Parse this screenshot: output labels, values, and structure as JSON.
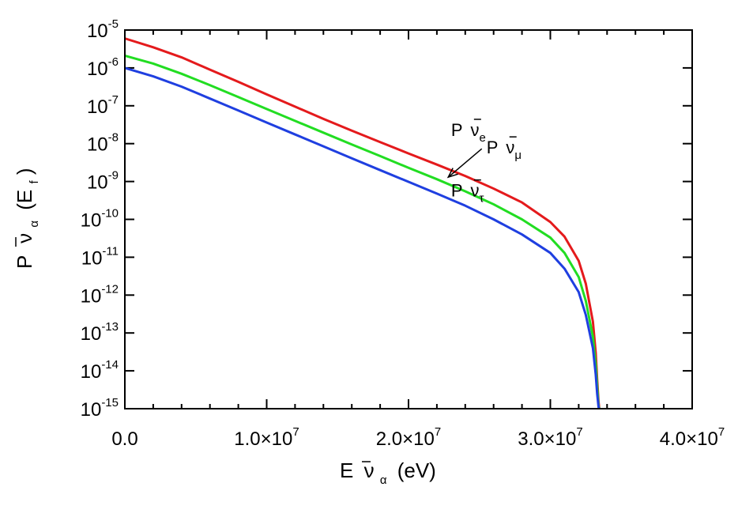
{
  "chart_data": {
    "type": "line",
    "xscale": "linear",
    "yscale": "log",
    "xlim": [
      0,
      40000000
    ],
    "ylim": [
      1e-15,
      1e-05
    ],
    "grid": false,
    "legend": "none",
    "x_ticks": [
      {
        "value": 0,
        "mantissa": "0.0",
        "times": "",
        "base": "",
        "exp": ""
      },
      {
        "value": 10000000,
        "mantissa": "1.0",
        "times": "×",
        "base": "10",
        "exp": "7"
      },
      {
        "value": 20000000,
        "mantissa": "2.0",
        "times": "×",
        "base": "10",
        "exp": "7"
      },
      {
        "value": 30000000,
        "mantissa": "3.0",
        "times": "×",
        "base": "10",
        "exp": "7"
      },
      {
        "value": 40000000,
        "mantissa": "4.0",
        "times": "×",
        "base": "10",
        "exp": "7"
      }
    ],
    "y_ticks": [
      {
        "value": 1e-05,
        "base": "10",
        "exp": "-5"
      },
      {
        "value": 1e-06,
        "base": "10",
        "exp": "-6"
      },
      {
        "value": 1e-07,
        "base": "10",
        "exp": "-7"
      },
      {
        "value": 1e-08,
        "base": "10",
        "exp": "-8"
      },
      {
        "value": 1e-09,
        "base": "10",
        "exp": "-9"
      },
      {
        "value": 1e-10,
        "base": "10",
        "exp": "-10"
      },
      {
        "value": 1e-11,
        "base": "10",
        "exp": "-11"
      },
      {
        "value": 1e-12,
        "base": "10",
        "exp": "-12"
      },
      {
        "value": 1e-13,
        "base": "10",
        "exp": "-13"
      },
      {
        "value": 1e-14,
        "base": "10",
        "exp": "-14"
      },
      {
        "value": 1e-15,
        "base": "10",
        "exp": "-15"
      }
    ],
    "xlabel": {
      "main": "E",
      "overbar": "ν",
      "sub": "α",
      "unit": "(eV)"
    },
    "ylabel": {
      "main": "P",
      "overbar": "ν",
      "sub": "α",
      "arg": "(E",
      "arg_sub": "f",
      "close": ")"
    },
    "series": [
      {
        "name_main": "P",
        "name_nu": "ν",
        "name_sub": "e",
        "color": "#e41a1c",
        "x": [
          0,
          2000000,
          4000000,
          6000000,
          8000000,
          10000000,
          12000000,
          14000000,
          16000000,
          18000000,
          20000000,
          22000000,
          24000000,
          26000000,
          28000000,
          30000000,
          31000000,
          32000000,
          32500000,
          33000000,
          33200000,
          33300000,
          33400000,
          33450000
        ],
        "y": [
          6e-06,
          3.5e-06,
          1.9e-06,
          9e-07,
          4.3e-07,
          2e-07,
          9.5e-08,
          4.5e-08,
          2.2e-08,
          1.1e-08,
          5.5e-09,
          2.8e-09,
          1.4e-09,
          6.5e-10,
          2.8e-10,
          8.5e-11,
          3.5e-11,
          8e-12,
          2e-12,
          2e-13,
          3e-14,
          6e-15,
          1.5e-15,
          1e-15
        ]
      },
      {
        "name_main": "P",
        "name_nu": "ν",
        "name_sub": "μ",
        "color": "#22dd22",
        "x": [
          0,
          2000000,
          4000000,
          6000000,
          8000000,
          10000000,
          12000000,
          14000000,
          16000000,
          18000000,
          20000000,
          22000000,
          24000000,
          26000000,
          28000000,
          30000000,
          31000000,
          32000000,
          32500000,
          33000000,
          33200000,
          33300000,
          33400000,
          33450000
        ],
        "y": [
          2.1e-06,
          1.3e-06,
          7e-07,
          3.5e-07,
          1.7e-07,
          8.2e-08,
          4e-08,
          1.95e-08,
          9.5e-09,
          4.7e-09,
          2.3e-09,
          1.15e-09,
          5.5e-10,
          2.5e-10,
          1e-10,
          3.3e-11,
          1.3e-11,
          3e-12,
          7e-13,
          8e-14,
          1.5e-14,
          4e-15,
          1.2e-15,
          1e-15
        ]
      },
      {
        "name_main": "P",
        "name_nu": "ν",
        "name_sub": "τ",
        "color": "#1f3fe0",
        "x": [
          0,
          2000000,
          4000000,
          6000000,
          8000000,
          10000000,
          12000000,
          14000000,
          16000000,
          18000000,
          20000000,
          22000000,
          24000000,
          26000000,
          28000000,
          30000000,
          31000000,
          32000000,
          32500000,
          33000000,
          33200000,
          33300000,
          33400000,
          33450000
        ],
        "y": [
          1e-06,
          6e-07,
          3.2e-07,
          1.55e-07,
          7.5e-08,
          3.6e-08,
          1.75e-08,
          8.5e-09,
          4.1e-09,
          2e-09,
          9.8e-10,
          4.8e-10,
          2.3e-10,
          1e-10,
          4e-11,
          1.3e-11,
          5e-12,
          1.2e-12,
          3e-13,
          4e-14,
          8e-15,
          2.5e-15,
          1.1e-15,
          1e-15
        ]
      }
    ],
    "annotations": [
      {
        "series": 0,
        "label_x": 23000000,
        "label_y": 1.6e-08,
        "arrow": false
      },
      {
        "series": 1,
        "label_x": 25500000,
        "label_y": 5.5e-09,
        "arrow": true,
        "arrow_to_x": 22800000,
        "arrow_to_y": 1.3e-09
      },
      {
        "series": 2,
        "label_x": 23000000,
        "label_y": 4e-10,
        "arrow": false
      }
    ]
  }
}
